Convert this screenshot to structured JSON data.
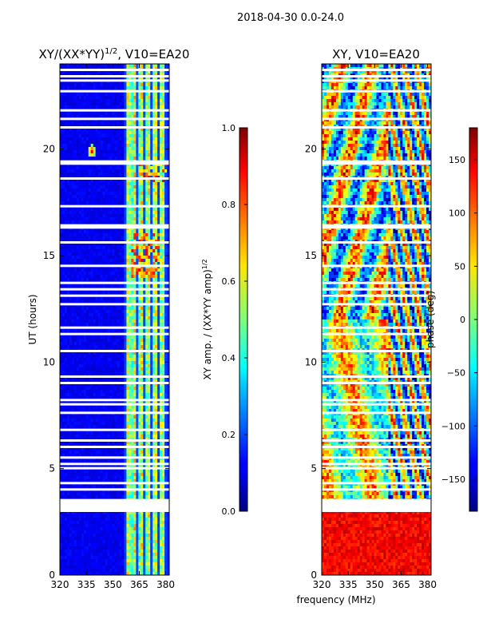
{
  "figure_title": "2018-04-30 0.0-24.0",
  "chart_data": [
    {
      "type": "heatmap",
      "title_main": "XY/(XX*YY)",
      "title_sup": "1/2",
      "title_rest": ", V10=EA20",
      "xlabel": "",
      "ylabel": "UT (hours)",
      "xlim": [
        320,
        382
      ],
      "ylim": [
        0,
        24
      ],
      "xticks": [
        320,
        335,
        350,
        365,
        380
      ],
      "yticks": [
        0,
        5,
        10,
        15,
        20
      ],
      "colormap": "jet",
      "colorbar": {
        "label_main": "XY amp. / (XX*YY amp)",
        "label_sup": "1/2",
        "range": [
          0.0,
          1.0
        ],
        "ticks": [
          "0.0",
          "0.2",
          "0.4",
          "0.6",
          "0.8",
          "1.0"
        ]
      },
      "bright_channels_mhz": [
        359,
        362,
        366,
        370,
        374,
        378
      ],
      "hotspot": {
        "freq_mhz": 338,
        "ut_hours": 19.9
      }
    },
    {
      "type": "heatmap",
      "title": "XY, V10=EA20",
      "xlabel": "frequency (MHz)",
      "ylabel": "",
      "xlim": [
        320,
        382
      ],
      "ylim": [
        0,
        24
      ],
      "xticks": [
        320,
        335,
        350,
        365,
        380
      ],
      "yticks": [
        0,
        5,
        10,
        15,
        20
      ],
      "colormap": "jet",
      "colorbar": {
        "label": "phase (deg)",
        "range": [
          -180,
          180
        ],
        "ticks": [
          "−150",
          "−100",
          "−50",
          "0",
          "50",
          "100",
          "150"
        ],
        "tick_values": [
          -150,
          -100,
          -50,
          0,
          50,
          100,
          150
        ]
      }
    }
  ],
  "flagged_gaps_ut_hours": [
    3.0,
    3.2,
    3.4,
    3.5,
    4.0,
    4.3,
    5.0,
    5.2,
    5.5,
    6.0,
    6.3,
    6.8,
    7.6,
    8.0,
    8.2,
    9.0,
    9.3,
    10.5,
    11.3,
    11.6,
    12.7,
    13.1,
    13.4,
    13.7,
    14.5,
    15.6,
    16.3,
    16.4,
    17.3,
    18.6,
    19.3,
    19.4,
    21.0,
    21.4,
    21.8,
    22.7,
    23.2,
    23.4,
    23.7
  ]
}
